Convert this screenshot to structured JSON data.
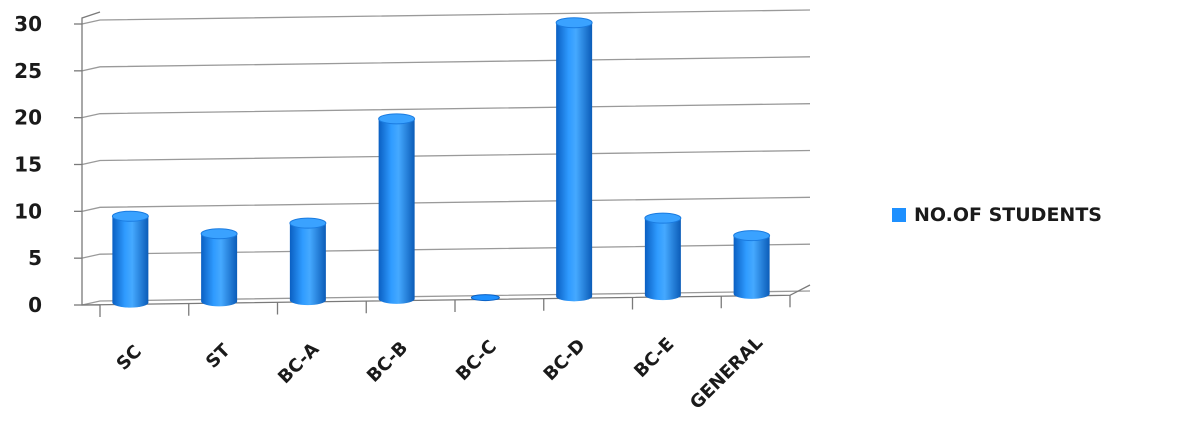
{
  "chart_data": {
    "type": "bar",
    "categories": [
      "SC",
      "ST",
      "BC-A",
      "BC-B",
      "BC-C",
      "BC-D",
      "BC-E",
      "GENERAL"
    ],
    "series": [
      {
        "name": "NO.OF STUDENTS",
        "values": [
          9,
          7,
          8,
          19,
          0,
          29,
          8,
          6
        ]
      }
    ],
    "y_ticks": [
      "0",
      "5",
      "10",
      "15",
      "20",
      "25",
      "30"
    ],
    "ylim": [
      0,
      30
    ],
    "grid": true,
    "legend_position": "right",
    "bar_color": "#1e90ff",
    "style": "3d-cylinder"
  }
}
